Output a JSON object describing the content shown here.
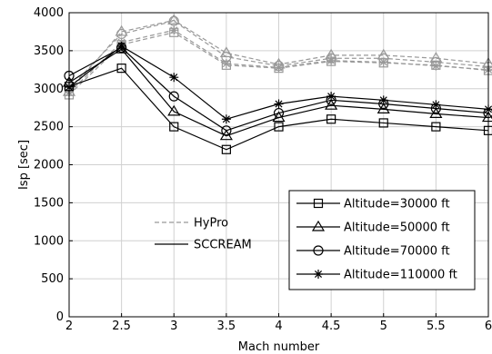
{
  "chart_data": {
    "type": "line",
    "title": "",
    "xlabel": "Mach number",
    "ylabel": "Isp [sec]",
    "xlim": [
      2,
      6
    ],
    "ylim": [
      0,
      4000
    ],
    "x_ticks": [
      "2",
      "2.5",
      "3",
      "3.5",
      "4",
      "4.5",
      "5",
      "5.5",
      "6"
    ],
    "y_ticks": [
      "0",
      "500",
      "1000",
      "1500",
      "2000",
      "2500",
      "3000",
      "3500",
      "4000"
    ],
    "grid": true,
    "x": [
      2,
      2.5,
      3,
      3.5,
      4,
      4.5,
      5,
      5.5,
      6
    ],
    "series": [
      {
        "name": "Altitude=30000 ft",
        "model": "SCCREAM",
        "marker": "square",
        "values": [
          3030,
          3270,
          2500,
          2200,
          2500,
          2600,
          2550,
          2500,
          2450
        ]
      },
      {
        "name": "Altitude=50000 ft",
        "model": "SCCREAM",
        "marker": "triangle",
        "values": [
          3080,
          3520,
          2700,
          2380,
          2620,
          2780,
          2730,
          2670,
          2620
        ]
      },
      {
        "name": "Altitude=70000 ft",
        "model": "SCCREAM",
        "marker": "circle",
        "values": [
          3170,
          3540,
          2900,
          2450,
          2680,
          2850,
          2800,
          2740,
          2680
        ]
      },
      {
        "name": "Altitude=110000 ft",
        "model": "SCCREAM",
        "marker": "star",
        "values": [
          3020,
          3560,
          3150,
          2600,
          2800,
          2900,
          2850,
          2790,
          2730
        ]
      },
      {
        "name": "Altitude=30000 ft",
        "model": "HyPro",
        "marker": "square",
        "values": [
          2920,
          3580,
          3740,
          3310,
          3270,
          3360,
          3340,
          3310,
          3240
        ]
      },
      {
        "name": "Altitude=50000 ft",
        "model": "HyPro",
        "marker": "triangle",
        "values": [
          2960,
          3750,
          3900,
          3470,
          3320,
          3440,
          3440,
          3400,
          3330
        ]
      },
      {
        "name": "Altitude=70000 ft",
        "model": "HyPro",
        "marker": "circle",
        "values": [
          3000,
          3720,
          3890,
          3420,
          3300,
          3400,
          3400,
          3350,
          3290
        ]
      },
      {
        "name": "Altitude=110000 ft",
        "model": "HyPro",
        "marker": "star",
        "values": [
          2950,
          3610,
          3770,
          3330,
          3280,
          3370,
          3350,
          3300,
          3250
        ]
      }
    ],
    "model_legend": {
      "placement": "center-left",
      "entries": [
        {
          "label": "HyPro",
          "style": "dashed",
          "color": "#999999"
        },
        {
          "label": "SCCREAM",
          "style": "solid",
          "color": "#000000"
        }
      ]
    },
    "altitude_legend": {
      "placement": "lower-right",
      "entries": [
        {
          "label": "Altitude=30000 ft",
          "marker": "square"
        },
        {
          "label": "Altitude=50000 ft",
          "marker": "triangle"
        },
        {
          "label": "Altitude=70000 ft",
          "marker": "circle"
        },
        {
          "label": "Altitude=110000 ft",
          "marker": "star"
        }
      ]
    },
    "colors": {
      "sccream": "#000000",
      "hypro": "#999999",
      "grid": "#d0d0d0"
    }
  }
}
